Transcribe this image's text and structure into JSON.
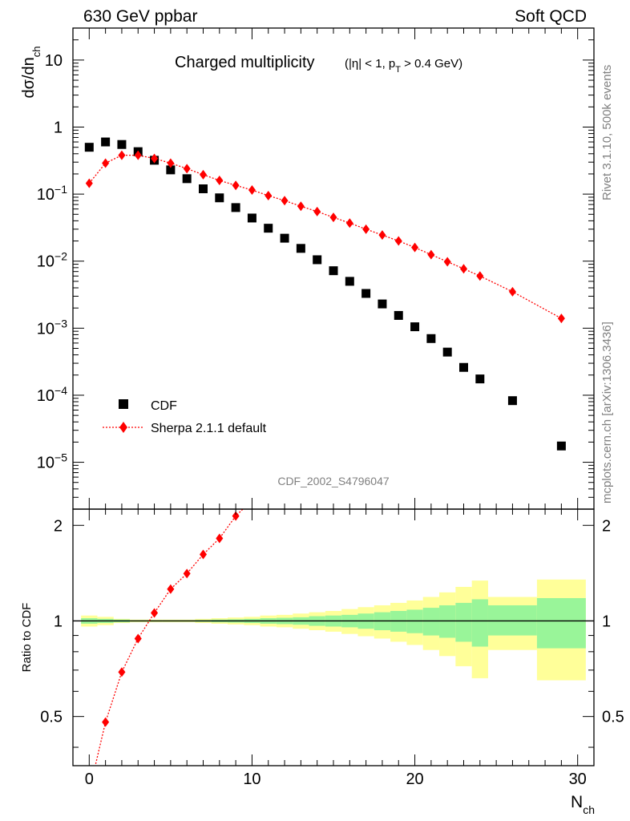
{
  "header": {
    "left": "630 GeV ppbar",
    "right": "Soft QCD"
  },
  "side_labels": {
    "top": "Rivet 3.1.10,  500k events",
    "bottom": "mcplots.cern.ch [arXiv:1306.3436]"
  },
  "chart_data": [
    {
      "type": "scatter",
      "title": "Charged multiplicity",
      "title_sub": "(|η| < 1, p_T > 0.4 GeV)",
      "analysis_id": "CDF_2002_S4796047",
      "ylabel": "dσ/dn_ch",
      "yscale": "log",
      "ylim": [
        2e-06,
        30
      ],
      "xlim": [
        -1,
        31
      ],
      "x_ticks": [
        0,
        10,
        20,
        30
      ],
      "legend_position": "bottom-left",
      "series": [
        {
          "name": "CDF",
          "color": "#000000",
          "marker": "square",
          "x": [
            0,
            1,
            2,
            3,
            4,
            5,
            6,
            7,
            8,
            9,
            10,
            11,
            12,
            13,
            14,
            15,
            16,
            17,
            18,
            19,
            20,
            21,
            22,
            23,
            24,
            26,
            29
          ],
          "y": [
            0.5,
            0.6,
            0.55,
            0.43,
            0.32,
            0.23,
            0.17,
            0.12,
            0.088,
            0.063,
            0.044,
            0.031,
            0.022,
            0.0155,
            0.0105,
            0.0072,
            0.005,
            0.0033,
            0.0023,
            0.00155,
            0.00105,
            0.0007,
            0.00044,
            0.00026,
            0.000175,
            8.3e-05,
            1.75e-05
          ]
        },
        {
          "name": "Sherpa 2.1.1 default",
          "color": "#ff0000",
          "marker": "diamond",
          "linestyle": "dotted",
          "x": [
            0,
            1,
            2,
            3,
            4,
            5,
            6,
            7,
            8,
            9,
            10,
            11,
            12,
            13,
            14,
            15,
            16,
            17,
            18,
            19,
            20,
            21,
            22,
            23,
            24,
            26,
            29
          ],
          "y": [
            0.145,
            0.29,
            0.38,
            0.38,
            0.34,
            0.29,
            0.24,
            0.195,
            0.16,
            0.135,
            0.115,
            0.095,
            0.08,
            0.066,
            0.055,
            0.045,
            0.037,
            0.03,
            0.0245,
            0.02,
            0.016,
            0.0125,
            0.0098,
            0.0077,
            0.006,
            0.0035,
            0.0014
          ]
        }
      ]
    },
    {
      "type": "line",
      "ylabel": "Ratio to CDF",
      "xlabel": "N_ch",
      "ylim": [
        0.35,
        2.25
      ],
      "xlim": [
        -1,
        31
      ],
      "y_ticks": [
        0.5,
        1,
        2
      ],
      "x_ticks": [
        0,
        10,
        20,
        30
      ],
      "reference_line": 1,
      "band_colors": {
        "inner": "#99f599",
        "outer": "#ffff99"
      },
      "bands": [
        {
          "x0": -0.5,
          "x1": 0.5,
          "outer": [
            0.96,
            1.04
          ],
          "inner": [
            0.98,
            1.02
          ]
        },
        {
          "x0": 0.5,
          "x1": 1.5,
          "outer": [
            0.97,
            1.03
          ],
          "inner": [
            0.985,
            1.015
          ]
        },
        {
          "x0": 1.5,
          "x1": 2.5,
          "outer": [
            0.985,
            1.015
          ],
          "inner": [
            0.99,
            1.01
          ]
        },
        {
          "x0": 2.5,
          "x1": 3.5,
          "outer": [
            0.99,
            1.01
          ],
          "inner": [
            0.995,
            1.005
          ]
        },
        {
          "x0": 3.5,
          "x1": 4.5,
          "outer": [
            0.99,
            1.01
          ],
          "inner": [
            0.995,
            1.005
          ]
        },
        {
          "x0": 4.5,
          "x1": 5.5,
          "outer": [
            0.99,
            1.01
          ],
          "inner": [
            0.995,
            1.005
          ]
        },
        {
          "x0": 5.5,
          "x1": 6.5,
          "outer": [
            0.99,
            1.01
          ],
          "inner": [
            0.995,
            1.005
          ]
        },
        {
          "x0": 6.5,
          "x1": 7.5,
          "outer": [
            0.985,
            1.015
          ],
          "inner": [
            0.993,
            1.007
          ]
        },
        {
          "x0": 7.5,
          "x1": 8.5,
          "outer": [
            0.98,
            1.02
          ],
          "inner": [
            0.99,
            1.01
          ]
        },
        {
          "x0": 8.5,
          "x1": 9.5,
          "outer": [
            0.975,
            1.025
          ],
          "inner": [
            0.988,
            1.012
          ]
        },
        {
          "x0": 9.5,
          "x1": 10.5,
          "outer": [
            0.97,
            1.03
          ],
          "inner": [
            0.985,
            1.015
          ]
        },
        {
          "x0": 10.5,
          "x1": 11.5,
          "outer": [
            0.96,
            1.04
          ],
          "inner": [
            0.98,
            1.02
          ]
        },
        {
          "x0": 11.5,
          "x1": 12.5,
          "outer": [
            0.955,
            1.045
          ],
          "inner": [
            0.977,
            1.023
          ]
        },
        {
          "x0": 12.5,
          "x1": 13.5,
          "outer": [
            0.945,
            1.055
          ],
          "inner": [
            0.973,
            1.027
          ]
        },
        {
          "x0": 13.5,
          "x1": 14.5,
          "outer": [
            0.935,
            1.065
          ],
          "inner": [
            0.965,
            1.035
          ]
        },
        {
          "x0": 14.5,
          "x1": 15.5,
          "outer": [
            0.925,
            1.075
          ],
          "inner": [
            0.96,
            1.04
          ]
        },
        {
          "x0": 15.5,
          "x1": 16.5,
          "outer": [
            0.91,
            1.09
          ],
          "inner": [
            0.955,
            1.045
          ]
        },
        {
          "x0": 16.5,
          "x1": 17.5,
          "outer": [
            0.895,
            1.105
          ],
          "inner": [
            0.945,
            1.055
          ]
        },
        {
          "x0": 17.5,
          "x1": 18.5,
          "outer": [
            0.88,
            1.12
          ],
          "inner": [
            0.935,
            1.065
          ]
        },
        {
          "x0": 18.5,
          "x1": 19.5,
          "outer": [
            0.86,
            1.14
          ],
          "inner": [
            0.925,
            1.075
          ]
        },
        {
          "x0": 19.5,
          "x1": 20.5,
          "outer": [
            0.84,
            1.16
          ],
          "inner": [
            0.915,
            1.085
          ]
        },
        {
          "x0": 20.5,
          "x1": 21.5,
          "outer": [
            0.81,
            1.19
          ],
          "inner": [
            0.9,
            1.1
          ]
        },
        {
          "x0": 21.5,
          "x1": 22.5,
          "outer": [
            0.775,
            1.23
          ],
          "inner": [
            0.885,
            1.12
          ]
        },
        {
          "x0": 22.5,
          "x1": 23.5,
          "outer": [
            0.72,
            1.28
          ],
          "inner": [
            0.86,
            1.14
          ]
        },
        {
          "x0": 23.5,
          "x1": 24.5,
          "outer": [
            0.66,
            1.34
          ],
          "inner": [
            0.83,
            1.17
          ]
        },
        {
          "x0": 24.5,
          "x1": 27.5,
          "outer": [
            0.81,
            1.19
          ],
          "inner": [
            0.9,
            1.12
          ]
        },
        {
          "x0": 27.5,
          "x1": 30.5,
          "outer": [
            0.65,
            1.35
          ],
          "inner": [
            0.82,
            1.18
          ]
        }
      ],
      "series": [
        {
          "name": "Sherpa 2.1.1 default",
          "color": "#ff0000",
          "marker": "diamond",
          "linestyle": "dotted",
          "x": [
            0,
            1,
            2,
            3,
            4,
            5,
            6,
            7,
            8,
            9
          ],
          "y": [
            0.29,
            0.48,
            0.69,
            0.88,
            1.06,
            1.26,
            1.41,
            1.62,
            1.82,
            2.14
          ],
          "line_extends_to": {
            "x": 10,
            "y": 2.4
          }
        }
      ]
    }
  ]
}
